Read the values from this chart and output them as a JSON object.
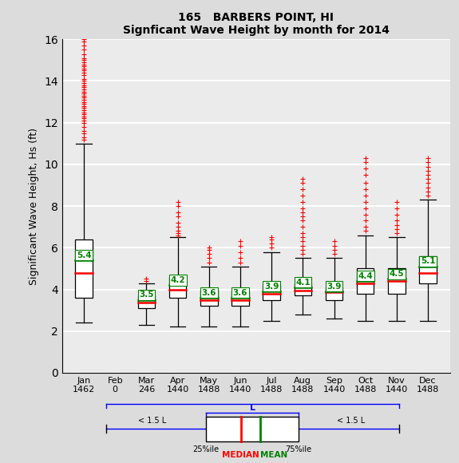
{
  "title1": "165   BARBERS POINT, HI",
  "title2": "Signficant Wave Height by month for 2014",
  "ylabel": "Significant Wave Height, Hs (ft)",
  "ylim": [
    0,
    16
  ],
  "yticks": [
    0,
    2,
    4,
    6,
    8,
    10,
    12,
    14,
    16
  ],
  "months": [
    "Jan",
    "Feb",
    "Mar",
    "Apr",
    "May",
    "Jun",
    "Jul",
    "Aug",
    "Sep",
    "Oct",
    "Nov",
    "Dec"
  ],
  "counts": [
    "1462",
    "0",
    "246",
    "1440",
    "1488",
    "1440",
    "1488",
    "1488",
    "1440",
    "1488",
    "1440",
    "1488"
  ],
  "box_data": {
    "Jan": {
      "q1": 3.6,
      "median": 4.8,
      "q3": 6.4,
      "whislo": 2.4,
      "whishi": 11.0,
      "mean": 5.4,
      "fliers_high": [
        11.2,
        11.3,
        11.5,
        11.6,
        11.8,
        12.0,
        12.1,
        12.2,
        12.3,
        12.4,
        12.5,
        12.6,
        12.7,
        12.8,
        12.9,
        13.0,
        13.1,
        13.2,
        13.3,
        13.4,
        13.5,
        13.6,
        13.7,
        13.8,
        13.9,
        14.0,
        14.1,
        14.3,
        14.4,
        14.5,
        14.6,
        14.7,
        14.8,
        14.9,
        15.0,
        15.1,
        15.3,
        15.5,
        15.7,
        15.9,
        16.0
      ]
    },
    "Feb": {
      "q1": null,
      "median": null,
      "q3": null,
      "whislo": null,
      "whishi": null,
      "mean": null,
      "fliers_high": []
    },
    "Mar": {
      "q1": 3.1,
      "median": 3.35,
      "q3": 3.7,
      "whislo": 2.3,
      "whishi": 4.3,
      "mean": 3.5,
      "fliers_high": [
        4.4,
        4.5
      ]
    },
    "Apr": {
      "q1": 3.6,
      "median": 4.0,
      "q3": 4.6,
      "whislo": 2.2,
      "whishi": 6.5,
      "mean": 4.2,
      "fliers_high": [
        6.6,
        6.7,
        6.8,
        7.0,
        7.2,
        7.5,
        7.7,
        8.0,
        8.2
      ]
    },
    "May": {
      "q1": 3.2,
      "median": 3.5,
      "q3": 4.0,
      "whislo": 2.2,
      "whishi": 5.1,
      "mean": 3.6,
      "fliers_high": [
        5.3,
        5.5,
        5.7,
        5.9,
        6.0
      ]
    },
    "Jun": {
      "q1": 3.2,
      "median": 3.5,
      "q3": 3.9,
      "whislo": 2.2,
      "whishi": 5.1,
      "mean": 3.6,
      "fliers_high": [
        5.3,
        5.5,
        5.8,
        6.1,
        6.3
      ]
    },
    "Jul": {
      "q1": 3.5,
      "median": 3.8,
      "q3": 4.2,
      "whislo": 2.5,
      "whishi": 5.8,
      "mean": 3.9,
      "fliers_high": [
        6.0,
        6.2,
        6.4,
        6.5
      ]
    },
    "Aug": {
      "q1": 3.7,
      "median": 3.95,
      "q3": 4.3,
      "whislo": 2.8,
      "whishi": 5.5,
      "mean": 4.1,
      "fliers_high": [
        5.7,
        5.9,
        6.1,
        6.3,
        6.5,
        6.7,
        7.0,
        7.3,
        7.5,
        7.7,
        7.9,
        8.2,
        8.5,
        8.8,
        9.1,
        9.3
      ]
    },
    "Sep": {
      "q1": 3.5,
      "median": 3.85,
      "q3": 4.1,
      "whislo": 2.6,
      "whishi": 5.5,
      "mean": 3.9,
      "fliers_high": [
        5.7,
        5.9,
        6.1,
        6.3
      ]
    },
    "Oct": {
      "q1": 3.8,
      "median": 4.3,
      "q3": 5.0,
      "whislo": 2.5,
      "whishi": 6.6,
      "mean": 4.4,
      "fliers_high": [
        6.8,
        7.0,
        7.3,
        7.6,
        7.9,
        8.2,
        8.5,
        8.8,
        9.1,
        9.5,
        9.8,
        10.1,
        10.3
      ]
    },
    "Nov": {
      "q1": 3.8,
      "median": 4.4,
      "q3": 5.0,
      "whislo": 2.5,
      "whishi": 6.5,
      "mean": 4.5,
      "fliers_high": [
        6.7,
        6.9,
        7.1,
        7.3,
        7.6,
        7.9,
        8.2
      ]
    },
    "Dec": {
      "q1": 4.3,
      "median": 4.8,
      "q3": 5.6,
      "whislo": 2.5,
      "whishi": 8.3,
      "mean": 5.1,
      "fliers_high": [
        8.5,
        8.7,
        8.9,
        9.1,
        9.3,
        9.5,
        9.7,
        9.9,
        10.1,
        10.3
      ]
    }
  },
  "box_color": "white",
  "median_color": "red",
  "mean_color": "green",
  "flier_color": "red",
  "whisker_color": "black",
  "box_edge_color": "black",
  "bg_color": "#dcdcdc",
  "plot_bg_color": "#ebebeb",
  "grid_color": "white",
  "title_fontsize": 10,
  "label_fontsize": 8,
  "ylabel_fontsize": 9
}
